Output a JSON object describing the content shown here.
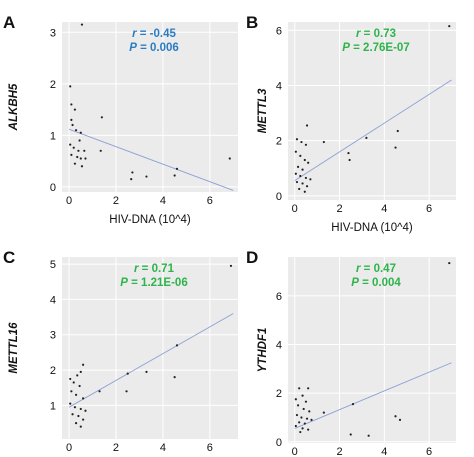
{
  "chart_data": [
    {
      "panel": "A",
      "type": "scatter",
      "xlabel": "HIV-DNA (10^4)",
      "ylabel": "ALKBH5",
      "xlim": [
        -0.3,
        7.2
      ],
      "ylim": [
        -0.1,
        3.2
      ],
      "xticks": [
        0,
        2,
        4,
        6
      ],
      "yticks": [
        0,
        1,
        2,
        3
      ],
      "grid": true,
      "annotation": {
        "r_label": "r",
        "r_value": "= -0.45",
        "p_label": "P",
        "p_value": "= 0.006",
        "color": "#2a7dc4"
      },
      "fit_line": {
        "x": [
          0,
          7.0
        ],
        "y": [
          1.12,
          -0.07
        ]
      },
      "points": [
        {
          "x": 0.55,
          "y": 3.15
        },
        {
          "x": 0.05,
          "y": 1.95
        },
        {
          "x": 0.1,
          "y": 1.6
        },
        {
          "x": 0.25,
          "y": 1.5
        },
        {
          "x": 0.1,
          "y": 1.3
        },
        {
          "x": 0.15,
          "y": 1.2
        },
        {
          "x": 0.3,
          "y": 1.1
        },
        {
          "x": 0.5,
          "y": 1.05
        },
        {
          "x": 0.45,
          "y": 0.9
        },
        {
          "x": 0.05,
          "y": 0.82
        },
        {
          "x": 0.2,
          "y": 0.76
        },
        {
          "x": 0.4,
          "y": 0.7
        },
        {
          "x": 0.65,
          "y": 0.7
        },
        {
          "x": 0.1,
          "y": 0.62
        },
        {
          "x": 0.35,
          "y": 0.58
        },
        {
          "x": 0.5,
          "y": 0.55
        },
        {
          "x": 0.7,
          "y": 0.55
        },
        {
          "x": 0.25,
          "y": 0.45
        },
        {
          "x": 0.55,
          "y": 0.4
        },
        {
          "x": 1.4,
          "y": 1.35
        },
        {
          "x": 1.35,
          "y": 0.7
        },
        {
          "x": 2.7,
          "y": 0.28
        },
        {
          "x": 2.65,
          "y": 0.15
        },
        {
          "x": 3.3,
          "y": 0.2
        },
        {
          "x": 4.6,
          "y": 0.35
        },
        {
          "x": 4.5,
          "y": 0.22
        },
        {
          "x": 6.85,
          "y": 0.55
        }
      ]
    },
    {
      "panel": "B",
      "type": "scatter",
      "xlabel": "HIV-DNA (10^4)",
      "ylabel": "METTL3",
      "xlim": [
        -0.3,
        7.2
      ],
      "ylim": [
        -0.15,
        6.3
      ],
      "xticks": [
        0,
        2,
        4,
        6
      ],
      "yticks": [
        0,
        2,
        4,
        6
      ],
      "grid": true,
      "annotation": {
        "r_label": "r",
        "r_value": "= 0.73",
        "p_label": "P",
        "p_value": "= 2.76E-07",
        "color": "#2db44b"
      },
      "fit_line": {
        "x": [
          0,
          7.0
        ],
        "y": [
          0.55,
          4.2
        ]
      },
      "points": [
        {
          "x": 0.55,
          "y": 2.55
        },
        {
          "x": 0.1,
          "y": 2.05
        },
        {
          "x": 0.3,
          "y": 1.95
        },
        {
          "x": 0.5,
          "y": 1.85
        },
        {
          "x": 0.05,
          "y": 1.6
        },
        {
          "x": 0.25,
          "y": 1.45
        },
        {
          "x": 0.45,
          "y": 1.3
        },
        {
          "x": 0.6,
          "y": 1.2
        },
        {
          "x": 0.15,
          "y": 1.05
        },
        {
          "x": 0.35,
          "y": 0.95
        },
        {
          "x": 0.05,
          "y": 0.8
        },
        {
          "x": 0.25,
          "y": 0.72
        },
        {
          "x": 0.5,
          "y": 0.65
        },
        {
          "x": 0.7,
          "y": 0.6
        },
        {
          "x": 0.1,
          "y": 0.5
        },
        {
          "x": 0.35,
          "y": 0.45
        },
        {
          "x": 0.55,
          "y": 0.35
        },
        {
          "x": 0.2,
          "y": 0.25
        },
        {
          "x": 0.45,
          "y": 0.15
        },
        {
          "x": 1.3,
          "y": 1.95
        },
        {
          "x": 2.4,
          "y": 1.55
        },
        {
          "x": 2.45,
          "y": 1.3
        },
        {
          "x": 3.2,
          "y": 2.1
        },
        {
          "x": 4.6,
          "y": 2.35
        },
        {
          "x": 4.5,
          "y": 1.75
        },
        {
          "x": 6.9,
          "y": 6.15
        }
      ]
    },
    {
      "panel": "C",
      "type": "scatter",
      "xlabel": "HIV-DNA (10^4)",
      "ylabel": "METTL16",
      "xlim": [
        -0.3,
        7.2
      ],
      "ylim": [
        0.05,
        5.2
      ],
      "xticks": [
        0,
        2,
        4,
        6
      ],
      "yticks": [
        1,
        2,
        3,
        4,
        5
      ],
      "grid": true,
      "annotation": {
        "r_label": "r",
        "r_value": "= 0.71",
        "p_label": "P",
        "p_value": "= 1.21E-06",
        "color": "#2db44b"
      },
      "fit_line": {
        "x": [
          0,
          7.0
        ],
        "y": [
          0.95,
          3.6
        ]
      },
      "points": [
        {
          "x": 0.6,
          "y": 2.15
        },
        {
          "x": 0.5,
          "y": 1.95
        },
        {
          "x": 0.35,
          "y": 1.85
        },
        {
          "x": 0.05,
          "y": 1.75
        },
        {
          "x": 0.2,
          "y": 1.65
        },
        {
          "x": 0.45,
          "y": 1.55
        },
        {
          "x": 0.1,
          "y": 1.4
        },
        {
          "x": 0.3,
          "y": 1.3
        },
        {
          "x": 0.6,
          "y": 1.2
        },
        {
          "x": 0.05,
          "y": 1.05
        },
        {
          "x": 0.25,
          "y": 0.95
        },
        {
          "x": 0.5,
          "y": 0.9
        },
        {
          "x": 0.7,
          "y": 0.85
        },
        {
          "x": 0.15,
          "y": 0.75
        },
        {
          "x": 0.4,
          "y": 0.7
        },
        {
          "x": 0.6,
          "y": 0.6
        },
        {
          "x": 0.3,
          "y": 0.5
        },
        {
          "x": 0.5,
          "y": 0.4
        },
        {
          "x": 1.3,
          "y": 1.4
        },
        {
          "x": 2.5,
          "y": 1.9
        },
        {
          "x": 2.45,
          "y": 1.4
        },
        {
          "x": 3.3,
          "y": 1.95
        },
        {
          "x": 4.6,
          "y": 2.7
        },
        {
          "x": 4.5,
          "y": 1.8
        },
        {
          "x": 6.9,
          "y": 4.95
        }
      ]
    },
    {
      "panel": "D",
      "type": "scatter",
      "xlabel": "HIV-DNA (10^4)",
      "ylabel": "YTHDF1",
      "xlim": [
        -0.3,
        7.2
      ],
      "ylim": [
        -0.05,
        7.6
      ],
      "xticks": [
        0,
        2,
        4,
        6
      ],
      "yticks": [
        0,
        2,
        4,
        6
      ],
      "grid": true,
      "annotation": {
        "r_label": "r",
        "r_value": "= 0.47",
        "p_label": "P",
        "p_value": "= 0.004",
        "color": "#2db44b"
      },
      "fit_line": {
        "x": [
          0,
          7.0
        ],
        "y": [
          0.55,
          3.25
        ]
      },
      "points": [
        {
          "x": 0.2,
          "y": 2.2
        },
        {
          "x": 0.6,
          "y": 2.2
        },
        {
          "x": 0.35,
          "y": 1.9
        },
        {
          "x": 0.05,
          "y": 1.75
        },
        {
          "x": 0.5,
          "y": 1.65
        },
        {
          "x": 0.15,
          "y": 1.5
        },
        {
          "x": 0.4,
          "y": 1.35
        },
        {
          "x": 0.65,
          "y": 1.25
        },
        {
          "x": 0.1,
          "y": 1.1
        },
        {
          "x": 0.3,
          "y": 1.0
        },
        {
          "x": 0.55,
          "y": 0.95
        },
        {
          "x": 0.75,
          "y": 0.9
        },
        {
          "x": 0.2,
          "y": 0.8
        },
        {
          "x": 0.45,
          "y": 0.75
        },
        {
          "x": 0.05,
          "y": 0.65
        },
        {
          "x": 0.35,
          "y": 0.55
        },
        {
          "x": 0.6,
          "y": 0.5
        },
        {
          "x": 0.25,
          "y": 0.4
        },
        {
          "x": 1.3,
          "y": 1.2
        },
        {
          "x": 2.6,
          "y": 1.55
        },
        {
          "x": 2.5,
          "y": 0.3
        },
        {
          "x": 3.3,
          "y": 0.25
        },
        {
          "x": 4.5,
          "y": 1.05
        },
        {
          "x": 4.7,
          "y": 0.9
        },
        {
          "x": 6.9,
          "y": 7.35
        }
      ]
    }
  ]
}
